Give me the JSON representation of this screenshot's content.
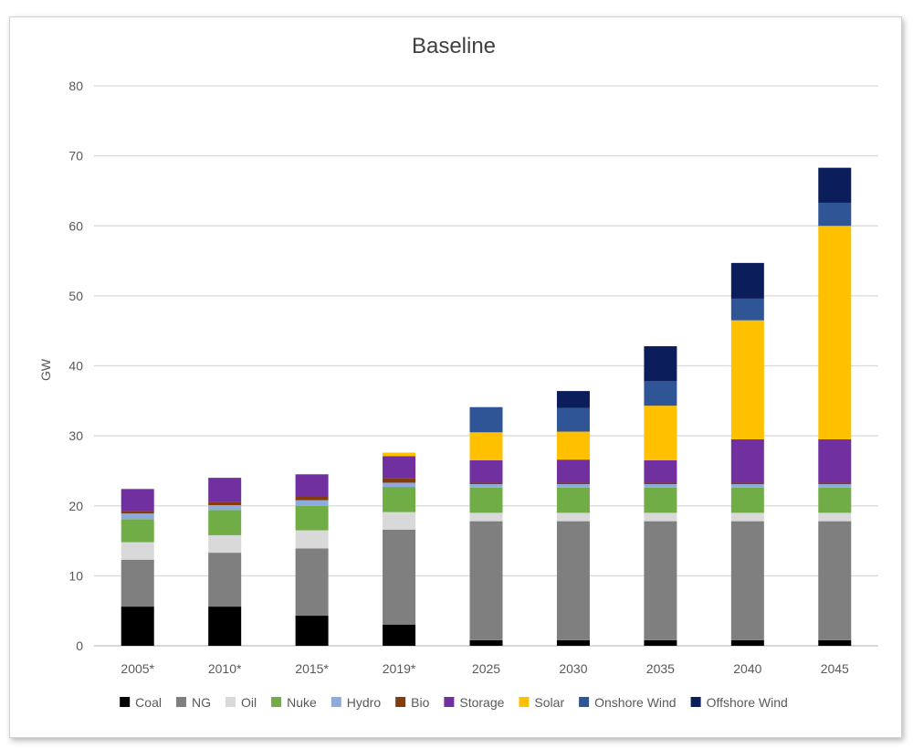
{
  "chart_data": {
    "type": "bar",
    "stacked": true,
    "title": "Baseline",
    "xlabel": "",
    "ylabel": "GW",
    "ylim": [
      0,
      80
    ],
    "yticks": [
      0,
      10,
      20,
      30,
      40,
      50,
      60,
      70,
      80
    ],
    "grid": true,
    "legend_position": "bottom",
    "categories": [
      "2005*",
      "2010*",
      "2015*",
      "2019*",
      "2025",
      "2030",
      "2035",
      "2040",
      "2045"
    ],
    "series": [
      {
        "name": "Coal",
        "color": "#000000",
        "values": [
          5.6,
          5.6,
          4.3,
          3.0,
          0.8,
          0.8,
          0.8,
          0.8,
          0.8
        ]
      },
      {
        "name": "NG",
        "color": "#7f7f7f",
        "values": [
          6.7,
          7.7,
          9.6,
          13.6,
          17.0,
          17.0,
          17.0,
          17.0,
          17.0
        ]
      },
      {
        "name": "Oil",
        "color": "#d9d9d9",
        "values": [
          2.5,
          2.5,
          2.6,
          2.5,
          1.2,
          1.2,
          1.2,
          1.2,
          1.2
        ]
      },
      {
        "name": "Nuke",
        "color": "#70ad47",
        "values": [
          3.3,
          3.6,
          3.5,
          3.6,
          3.6,
          3.6,
          3.6,
          3.6,
          3.6
        ]
      },
      {
        "name": "Hydro",
        "color": "#8faadc",
        "values": [
          0.8,
          0.7,
          0.8,
          0.6,
          0.5,
          0.5,
          0.5,
          0.5,
          0.5
        ]
      },
      {
        "name": "Bio",
        "color": "#843c0c",
        "values": [
          0.4,
          0.5,
          0.6,
          0.6,
          0.2,
          0.2,
          0.2,
          0.2,
          0.2
        ]
      },
      {
        "name": "Storage",
        "color": "#7030a0",
        "values": [
          3.1,
          3.4,
          3.1,
          3.2,
          3.2,
          3.3,
          3.2,
          6.2,
          6.2
        ]
      },
      {
        "name": "Solar",
        "color": "#ffc000",
        "values": [
          0.0,
          0.0,
          0.0,
          0.5,
          4.0,
          4.0,
          7.8,
          17.0,
          30.5
        ]
      },
      {
        "name": "Onshore Wind",
        "color": "#2f5597",
        "values": [
          0.0,
          0.0,
          0.0,
          0.0,
          3.6,
          3.4,
          3.5,
          3.1,
          3.3
        ]
      },
      {
        "name": "Offshore Wind",
        "color": "#0c1d5c",
        "values": [
          0.0,
          0.0,
          0.0,
          0.0,
          0.0,
          2.4,
          5.0,
          5.1,
          5.0
        ]
      }
    ]
  }
}
